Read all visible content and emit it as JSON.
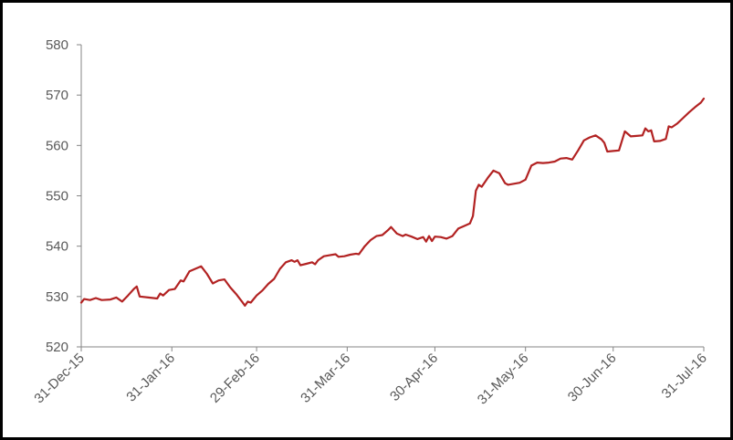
{
  "chart_data": {
    "type": "line",
    "title": "",
    "xlabel": "",
    "ylabel": "",
    "ylim": [
      520,
      580
    ],
    "yticks": [
      520,
      530,
      540,
      550,
      560,
      570,
      580
    ],
    "xlim": [
      "2015-12-31",
      "2016-07-31"
    ],
    "xtick_dates": [
      "2015-12-31",
      "2016-01-31",
      "2016-02-29",
      "2016-03-31",
      "2016-04-30",
      "2016-05-31",
      "2016-06-30",
      "2016-07-31"
    ],
    "xtick_labels": [
      "31-Dec-15",
      "31-Jan-16",
      "29-Feb-16",
      "31-Mar-16",
      "30-Apr-16",
      "31-May-16",
      "30-Jun-16",
      "31-Jul-16"
    ],
    "grid": false,
    "legend": "none",
    "series": [
      {
        "color": "#B22222",
        "points": [
          [
            "2015-12-31",
            528.8
          ],
          [
            "2016-01-01",
            529.5
          ],
          [
            "2016-01-03",
            529.3
          ],
          [
            "2016-01-05",
            529.7
          ],
          [
            "2016-01-07",
            529.3
          ],
          [
            "2016-01-10",
            529.4
          ],
          [
            "2016-01-12",
            529.8
          ],
          [
            "2016-01-14",
            529.0
          ],
          [
            "2016-01-16",
            530.2
          ],
          [
            "2016-01-18",
            531.5
          ],
          [
            "2016-01-19",
            532.0
          ],
          [
            "2016-01-20",
            530.0
          ],
          [
            "2016-01-23",
            529.8
          ],
          [
            "2016-01-26",
            529.6
          ],
          [
            "2016-01-27",
            530.6
          ],
          [
            "2016-01-28",
            530.2
          ],
          [
            "2016-01-30",
            531.3
          ],
          [
            "2016-02-01",
            531.5
          ],
          [
            "2016-02-03",
            533.2
          ],
          [
            "2016-02-04",
            533.0
          ],
          [
            "2016-02-06",
            535.0
          ],
          [
            "2016-02-08",
            535.5
          ],
          [
            "2016-02-10",
            536.0
          ],
          [
            "2016-02-12",
            534.5
          ],
          [
            "2016-02-14",
            532.6
          ],
          [
            "2016-02-16",
            533.2
          ],
          [
            "2016-02-18",
            533.4
          ],
          [
            "2016-02-20",
            531.8
          ],
          [
            "2016-02-22",
            530.5
          ],
          [
            "2016-02-24",
            529.0
          ],
          [
            "2016-02-25",
            528.2
          ],
          [
            "2016-02-26",
            529.0
          ],
          [
            "2016-02-27",
            528.8
          ],
          [
            "2016-02-29",
            530.2
          ],
          [
            "2016-03-02",
            531.2
          ],
          [
            "2016-03-04",
            532.5
          ],
          [
            "2016-03-06",
            533.5
          ],
          [
            "2016-03-08",
            535.5
          ],
          [
            "2016-03-10",
            536.8
          ],
          [
            "2016-03-12",
            537.2
          ],
          [
            "2016-03-13",
            536.9
          ],
          [
            "2016-03-14",
            537.2
          ],
          [
            "2016-03-15",
            536.2
          ],
          [
            "2016-03-17",
            536.5
          ],
          [
            "2016-03-19",
            536.8
          ],
          [
            "2016-03-20",
            536.4
          ],
          [
            "2016-03-21",
            537.2
          ],
          [
            "2016-03-23",
            538.0
          ],
          [
            "2016-03-25",
            538.2
          ],
          [
            "2016-03-27",
            538.4
          ],
          [
            "2016-03-28",
            537.9
          ],
          [
            "2016-03-30",
            538.0
          ],
          [
            "2016-04-01",
            538.3
          ],
          [
            "2016-04-03",
            538.5
          ],
          [
            "2016-04-04",
            538.4
          ],
          [
            "2016-04-06",
            540.0
          ],
          [
            "2016-04-08",
            541.2
          ],
          [
            "2016-04-10",
            542.0
          ],
          [
            "2016-04-12",
            542.2
          ],
          [
            "2016-04-14",
            543.2
          ],
          [
            "2016-04-15",
            543.8
          ],
          [
            "2016-04-17",
            542.5
          ],
          [
            "2016-04-19",
            542.0
          ],
          [
            "2016-04-20",
            542.3
          ],
          [
            "2016-04-22",
            541.9
          ],
          [
            "2016-04-24",
            541.4
          ],
          [
            "2016-04-26",
            541.8
          ],
          [
            "2016-04-27",
            540.9
          ],
          [
            "2016-04-28",
            542.0
          ],
          [
            "2016-04-29",
            541.0
          ],
          [
            "2016-04-30",
            541.9
          ],
          [
            "2016-05-02",
            541.8
          ],
          [
            "2016-05-04",
            541.5
          ],
          [
            "2016-05-06",
            542.0
          ],
          [
            "2016-05-08",
            543.5
          ],
          [
            "2016-05-10",
            544.0
          ],
          [
            "2016-05-12",
            544.5
          ],
          [
            "2016-05-13",
            546.0
          ],
          [
            "2016-05-14",
            551.0
          ],
          [
            "2016-05-15",
            552.2
          ],
          [
            "2016-05-16",
            551.8
          ],
          [
            "2016-05-18",
            553.5
          ],
          [
            "2016-05-20",
            555.0
          ],
          [
            "2016-05-22",
            554.5
          ],
          [
            "2016-05-24",
            552.5
          ],
          [
            "2016-05-25",
            552.2
          ],
          [
            "2016-05-27",
            552.4
          ],
          [
            "2016-05-29",
            552.6
          ],
          [
            "2016-05-31",
            553.2
          ],
          [
            "2016-06-02",
            556.0
          ],
          [
            "2016-06-04",
            556.6
          ],
          [
            "2016-06-06",
            556.5
          ],
          [
            "2016-06-08",
            556.6
          ],
          [
            "2016-06-10",
            556.8
          ],
          [
            "2016-06-12",
            557.4
          ],
          [
            "2016-06-14",
            557.5
          ],
          [
            "2016-06-16",
            557.2
          ],
          [
            "2016-06-18",
            559.0
          ],
          [
            "2016-06-20",
            561.0
          ],
          [
            "2016-06-22",
            561.6
          ],
          [
            "2016-06-24",
            562.0
          ],
          [
            "2016-06-26",
            561.2
          ],
          [
            "2016-06-27",
            560.5
          ],
          [
            "2016-06-28",
            558.8
          ],
          [
            "2016-06-30",
            558.9
          ],
          [
            "2016-07-02",
            559.0
          ],
          [
            "2016-07-04",
            562.8
          ],
          [
            "2016-07-06",
            561.8
          ],
          [
            "2016-07-08",
            561.9
          ],
          [
            "2016-07-10",
            562.0
          ],
          [
            "2016-07-11",
            563.4
          ],
          [
            "2016-07-12",
            562.8
          ],
          [
            "2016-07-13",
            563.0
          ],
          [
            "2016-07-14",
            560.8
          ],
          [
            "2016-07-16",
            560.9
          ],
          [
            "2016-07-18",
            561.3
          ],
          [
            "2016-07-19",
            563.8
          ],
          [
            "2016-07-20",
            563.6
          ],
          [
            "2016-07-22",
            564.4
          ],
          [
            "2016-07-24",
            565.5
          ],
          [
            "2016-07-26",
            566.6
          ],
          [
            "2016-07-28",
            567.6
          ],
          [
            "2016-07-30",
            568.5
          ],
          [
            "2016-07-31",
            569.3
          ]
        ]
      }
    ]
  }
}
